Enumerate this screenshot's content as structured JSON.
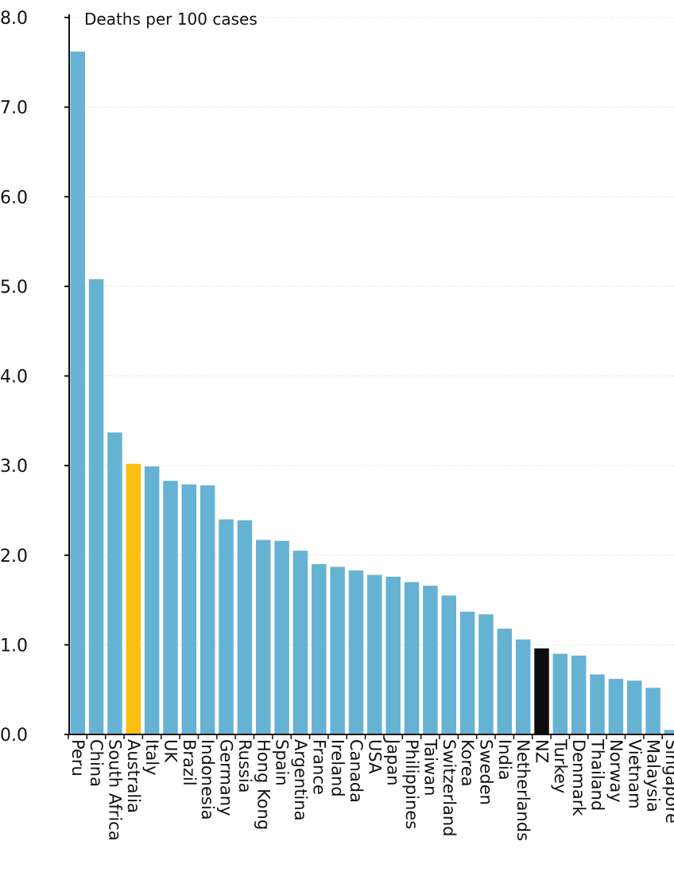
{
  "chart_data": {
    "type": "bar",
    "unit_label": "Deaths per 100 cases",
    "ylim": [
      0,
      8
    ],
    "yticks": [
      "0.0",
      "1.0",
      "2.0",
      "3.0",
      "4.0",
      "5.0",
      "6.0",
      "7.0",
      "8.0"
    ],
    "grid": true,
    "legend": "none",
    "categories": [
      "Peru",
      "China",
      "South Africa",
      "Australia",
      "Italy",
      "UK",
      "Brazil",
      "Indonesia",
      "Germany",
      "Russia",
      "Hong Kong",
      "Spain",
      "Argentina",
      "France",
      "Ireland",
      "Canada",
      "USA",
      "Japan",
      "Philippines",
      "Taiwan",
      "Switzerland",
      "Korea",
      "Sweden",
      "India",
      "Netherlands",
      "NZ",
      "Turkey",
      "Denmark",
      "Thailand",
      "Norway",
      "Vietnam",
      "Malaysia",
      "Singapore"
    ],
    "values": [
      7.62,
      5.08,
      3.37,
      3.02,
      2.99,
      2.83,
      2.79,
      2.78,
      2.4,
      2.39,
      2.17,
      2.16,
      2.05,
      1.9,
      1.87,
      1.83,
      1.78,
      1.76,
      1.7,
      1.66,
      1.55,
      1.37,
      1.34,
      1.18,
      1.06,
      0.96,
      0.9,
      0.88,
      0.67,
      0.62,
      0.6,
      0.52,
      0.05
    ],
    "colors": {
      "default": "#66b2d2",
      "highlights": {
        "Australia": "#fdbf10",
        "NZ": "#0d0d0d"
      },
      "gridline": "#e2e2e2",
      "axis": "#111111"
    }
  }
}
